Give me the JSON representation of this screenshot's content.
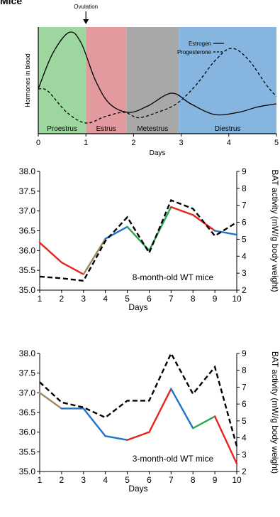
{
  "header_fragment": "Mice",
  "chart_data": [
    {
      "type": "line",
      "id": "hormone-cycle",
      "xlabel": "Days",
      "ylabel": "Hormones in blood",
      "xlim": [
        0,
        5
      ],
      "xticks": [
        "0",
        "1",
        "2",
        "3",
        "4",
        "5"
      ],
      "annotation": {
        "label": "Ovulation",
        "x": 1
      },
      "phases": [
        {
          "name": "Proestrus",
          "start": 0,
          "end": 1,
          "color": "#9ed6a0"
        },
        {
          "name": "Estrus",
          "start": 1,
          "end": 1.85,
          "color": "#e39a9e"
        },
        {
          "name": "Metestrus",
          "start": 1.85,
          "end": 2.95,
          "color": "#a8a8a8"
        },
        {
          "name": "Diestrus",
          "start": 2.95,
          "end": 5,
          "color": "#86b6e0"
        }
      ],
      "series": [
        {
          "name": "Estrogen",
          "style": "solid",
          "x": [
            0,
            0.3,
            0.65,
            0.9,
            1.2,
            1.5,
            1.9,
            2.3,
            2.8,
            3.2,
            3.7,
            4.2,
            4.6,
            5
          ],
          "values": [
            0.42,
            0.75,
            0.95,
            0.85,
            0.5,
            0.28,
            0.2,
            0.26,
            0.38,
            0.28,
            0.18,
            0.2,
            0.25,
            0.28
          ]
        },
        {
          "name": "Progesterone",
          "style": "dashed",
          "x": [
            0,
            0.2,
            0.6,
            1.0,
            1.4,
            1.8,
            2.1,
            2.5,
            2.9,
            3.3,
            3.7,
            4.05,
            4.4,
            4.8,
            5
          ],
          "values": [
            0.42,
            0.4,
            0.2,
            0.1,
            0.16,
            0.2,
            0.15,
            0.2,
            0.28,
            0.45,
            0.68,
            0.8,
            0.7,
            0.45,
            0.35
          ]
        }
      ]
    },
    {
      "type": "line",
      "id": "bat-8-month",
      "annotation": "8-month-old  WT mice",
      "xlabel": "Days",
      "ylabel_right": "BAT activity (mW/g body weight)",
      "x": [
        1,
        2,
        3,
        4,
        5,
        6,
        7,
        8,
        9,
        10
      ],
      "xlim": [
        1,
        10
      ],
      "ylim": [
        35.0,
        38.0
      ],
      "yticks": [
        "35.0",
        "35.5",
        "36.0",
        "36.5",
        "37.0",
        "37.5",
        "38.0"
      ],
      "ylim_right": [
        2,
        9
      ],
      "yticks_right": [
        "2",
        "3",
        "4",
        "5",
        "6",
        "7",
        "8",
        "9"
      ],
      "temperature": [
        36.2,
        35.7,
        35.4,
        36.3,
        36.6,
        36.0,
        37.1,
        36.9,
        36.5,
        36.4
      ],
      "segment_colors": [
        "#e8241f",
        "#e8241f",
        "#9b8a5a",
        "#1f74c8",
        "#2aa852",
        "#2aa852",
        "#e8241f",
        "#e8241f",
        "#1f74c8"
      ],
      "bat_activity": [
        2.8,
        2.7,
        2.55,
        4.9,
        6.3,
        4.2,
        7.3,
        6.8,
        5.2,
        6.0
      ]
    },
    {
      "type": "line",
      "id": "bat-3-month",
      "annotation": "3-month-old  WT mice",
      "xlabel": "Days",
      "ylabel_right": "BAT activity (mW/g body weight)",
      "x": [
        1,
        2,
        3,
        4,
        5,
        6,
        7,
        8,
        9,
        10
      ],
      "xlim": [
        1,
        10
      ],
      "ylim": [
        35.0,
        38.0
      ],
      "yticks": [
        "35.0",
        "35.5",
        "36.0",
        "36.5",
        "37.0",
        "37.5",
        "38.0"
      ],
      "ylim_right": [
        2,
        9
      ],
      "yticks_right": [
        "2",
        "3",
        "4",
        "5",
        "6",
        "7",
        "8",
        "9"
      ],
      "temperature": [
        37.0,
        36.6,
        36.6,
        35.9,
        35.8,
        36.0,
        37.1,
        36.1,
        36.4,
        35.2
      ],
      "segment_colors": [
        "#9b8a5a",
        "#1f74c8",
        "#1f74c8",
        "#1f74c8",
        "#e8241f",
        "#e8241f",
        "#1f74c8",
        "#2aa852",
        "#e8241f"
      ],
      "bat_activity": [
        7.3,
        6.1,
        5.8,
        5.2,
        6.2,
        6.2,
        9.0,
        6.6,
        8.2,
        3.5
      ]
    }
  ]
}
